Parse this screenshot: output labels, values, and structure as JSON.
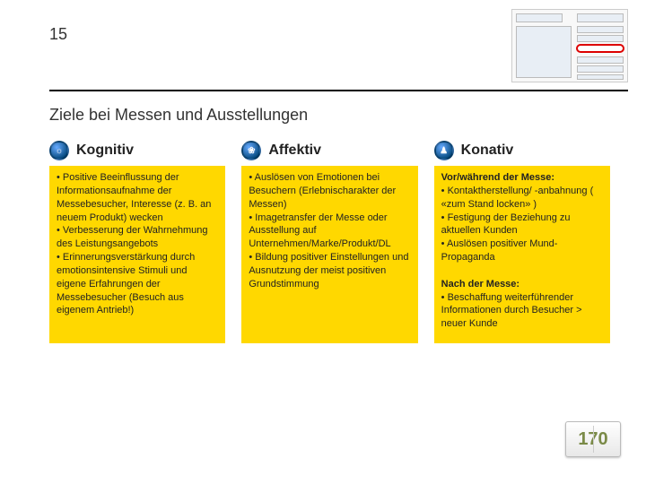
{
  "page_number": "15",
  "title": "Ziele bei Messen und Ausstellungen",
  "columns": [
    {
      "header": "Kognitiv",
      "icon_glyph": "☼",
      "body_html": "• Positive Beeinflussung der Informationsaufnahme der Messebesucher, Interesse (z. B. an neuem Produkt) wecken<br>• Verbesserung der Wahrnehmung des Leistungsangebots<br>• Erinnerungsverstärkung durch emotionsintensive Stimuli und eigene Erfahrungen der Messebesucher (Besuch aus eigenem Antrieb!)"
    },
    {
      "header": "Affektiv",
      "icon_glyph": "❀",
      "body_html": "• Auslösen von Emotionen bei Besuchern (Erlebnischarakter der Messen)<br>• Imagetransfer der Messe oder Ausstellung auf Unternehmen/Marke/Produkt/DL<br>• Bildung positiver Einstellungen und Ausnutzung der meist positiven Grundstimmung"
    },
    {
      "header": "Konativ",
      "icon_glyph": "♟",
      "body_html": "<span class='sub-head'>Vor/während der Messe:</span><br>• Kontaktherstellung/ -anbahnung ( «zum Stand locken» )<br>• Festigung der Beziehung zu aktuellen Kunden<br>• Auslösen positiver Mund-Propaganda<br><br><span class='sub-head'>Nach der Messe:</span><br>• Beschaffung weiterführender Informationen durch Besucher &gt; neuer Kunde"
    }
  ],
  "badge": "170",
  "colors": {
    "column_bg": "#ffd800",
    "rule": "#000000",
    "badge_text": "#7a8a47"
  }
}
